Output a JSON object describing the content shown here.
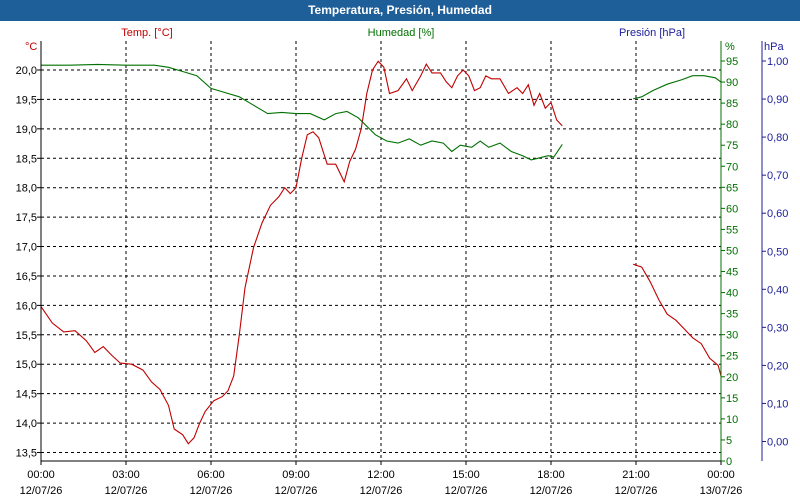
{
  "window": {
    "title": "Temperatura, Presión, Humedad"
  },
  "chart_data": {
    "type": "line",
    "title": "Temperatura, Presión, Humedad",
    "grid": true,
    "x_ticks": [
      [
        "00:00",
        "12/07/26"
      ],
      [
        "03:00",
        "12/07/26"
      ],
      [
        "06:00",
        "12/07/26"
      ],
      [
        "09:00",
        "12/07/26"
      ],
      [
        "12:00",
        "12/07/26"
      ],
      [
        "15:00",
        "12/07/26"
      ],
      [
        "18:00",
        "12/07/26"
      ],
      [
        "21:00",
        "12/07/26"
      ],
      [
        "00:00",
        "13/07/26"
      ]
    ],
    "xlim": [
      0,
      24
    ],
    "axes": {
      "temp": {
        "unit": "°C",
        "label": "Temp. [°C]",
        "color": "#c00000",
        "ylim": [
          13.5,
          20.0
        ],
        "ticks": [
          "13,5",
          "14,0",
          "14,5",
          "15,0",
          "15,5",
          "16,0",
          "16,5",
          "17,0",
          "17,5",
          "18,0",
          "18,5",
          "19,0",
          "19,5",
          "20,0"
        ]
      },
      "hum": {
        "unit": "%",
        "label": "Humedad [%]",
        "color": "#007000",
        "ylim": [
          0,
          95
        ],
        "ticks": [
          "0",
          "5",
          "10",
          "15",
          "20",
          "25",
          "30",
          "35",
          "40",
          "45",
          "50",
          "55",
          "60",
          "65",
          "70",
          "75",
          "80",
          "85",
          "90",
          "95"
        ]
      },
      "pres": {
        "unit": "hPa",
        "label": "Presión [hPa]",
        "color": "#1c1c9c",
        "ylim": [
          0.0,
          1.0
        ],
        "ticks": [
          "0,00",
          "0,10",
          "0,20",
          "0,30",
          "0,40",
          "0,50",
          "0,60",
          "0,70",
          "0,80",
          "0,90",
          "1,00"
        ]
      }
    },
    "series": [
      {
        "name": "Temp. [°C]",
        "axis": "temp",
        "color": "#c00000",
        "segments": [
          [
            [
              0,
              15.98
            ],
            [
              0.4,
              15.7
            ],
            [
              0.8,
              15.55
            ],
            [
              1.2,
              15.57
            ],
            [
              1.6,
              15.4
            ],
            [
              1.9,
              15.2
            ],
            [
              2.2,
              15.3
            ],
            [
              2.5,
              15.15
            ],
            [
              2.8,
              15.02
            ],
            [
              3.2,
              15.0
            ],
            [
              3.6,
              14.9
            ],
            [
              3.9,
              14.7
            ],
            [
              4.2,
              14.57
            ],
            [
              4.5,
              14.3
            ],
            [
              4.7,
              13.9
            ],
            [
              5.0,
              13.8
            ],
            [
              5.2,
              13.65
            ],
            [
              5.4,
              13.75
            ],
            [
              5.6,
              14.0
            ],
            [
              5.8,
              14.2
            ],
            [
              6.1,
              14.38
            ],
            [
              6.4,
              14.45
            ],
            [
              6.6,
              14.55
            ],
            [
              6.8,
              14.8
            ],
            [
              7.0,
              15.5
            ],
            [
              7.2,
              16.3
            ],
            [
              7.5,
              16.98
            ],
            [
              7.8,
              17.4
            ],
            [
              8.1,
              17.7
            ],
            [
              8.4,
              17.85
            ],
            [
              8.6,
              18.0
            ],
            [
              8.8,
              17.9
            ],
            [
              9.0,
              18.0
            ],
            [
              9.2,
              18.5
            ],
            [
              9.4,
              18.9
            ],
            [
              9.6,
              18.95
            ],
            [
              9.8,
              18.85
            ],
            [
              10.1,
              18.4
            ],
            [
              10.4,
              18.4
            ],
            [
              10.7,
              18.1
            ],
            [
              10.9,
              18.45
            ],
            [
              11.1,
              18.65
            ],
            [
              11.3,
              19.0
            ],
            [
              11.5,
              19.6
            ],
            [
              11.7,
              20.0
            ],
            [
              11.9,
              20.15
            ],
            [
              12.1,
              20.05
            ],
            [
              12.3,
              19.6
            ],
            [
              12.6,
              19.65
            ],
            [
              12.9,
              19.85
            ],
            [
              13.1,
              19.65
            ],
            [
              13.4,
              19.9
            ],
            [
              13.6,
              20.1
            ],
            [
              13.8,
              19.95
            ],
            [
              14.1,
              19.95
            ],
            [
              14.3,
              19.8
            ],
            [
              14.5,
              19.7
            ],
            [
              14.7,
              19.9
            ],
            [
              14.9,
              20.0
            ],
            [
              15.1,
              19.9
            ],
            [
              15.3,
              19.65
            ],
            [
              15.5,
              19.7
            ],
            [
              15.7,
              19.9
            ],
            [
              15.9,
              19.85
            ],
            [
              16.2,
              19.85
            ],
            [
              16.5,
              19.6
            ],
            [
              16.8,
              19.7
            ],
            [
              17.0,
              19.6
            ],
            [
              17.2,
              19.75
            ],
            [
              17.4,
              19.4
            ],
            [
              17.6,
              19.6
            ],
            [
              17.8,
              19.35
            ],
            [
              18.0,
              19.45
            ],
            [
              18.2,
              19.15
            ],
            [
              18.4,
              19.05
            ]
          ],
          [
            [
              20.9,
              16.7
            ],
            [
              21.2,
              16.65
            ],
            [
              21.5,
              16.4
            ],
            [
              21.8,
              16.1
            ],
            [
              22.1,
              15.85
            ],
            [
              22.4,
              15.75
            ],
            [
              22.7,
              15.6
            ],
            [
              23.0,
              15.45
            ],
            [
              23.3,
              15.35
            ],
            [
              23.6,
              15.1
            ],
            [
              23.9,
              14.98
            ],
            [
              24.2,
              14.8
            ]
          ]
        ]
      },
      {
        "name": "Humedad [%]",
        "axis": "hum",
        "color": "#007000",
        "segments": [
          [
            [
              0,
              94
            ],
            [
              1,
              94
            ],
            [
              2,
              94.2
            ],
            [
              3,
              94
            ],
            [
              4,
              94
            ],
            [
              4.5,
              93.5
            ],
            [
              5,
              92.5
            ],
            [
              5.5,
              91.5
            ],
            [
              6,
              88.5
            ],
            [
              6.5,
              87.5
            ],
            [
              7,
              86.5
            ],
            [
              7.5,
              84.5
            ],
            [
              8,
              82.5
            ],
            [
              8.5,
              82.8
            ],
            [
              9,
              82.5
            ],
            [
              9.5,
              82.5
            ],
            [
              10,
              81
            ],
            [
              10.4,
              82.5
            ],
            [
              10.8,
              83
            ],
            [
              11.2,
              81.5
            ],
            [
              11.5,
              79.5
            ],
            [
              11.8,
              77.5
            ],
            [
              12.2,
              76
            ],
            [
              12.6,
              75.5
            ],
            [
              13,
              76.5
            ],
            [
              13.4,
              75
            ],
            [
              13.8,
              76
            ],
            [
              14.2,
              75.5
            ],
            [
              14.5,
              73.5
            ],
            [
              14.8,
              75
            ],
            [
              15.2,
              74.5
            ],
            [
              15.5,
              76
            ],
            [
              15.8,
              74.5
            ],
            [
              16.2,
              75.5
            ],
            [
              16.6,
              73.5
            ],
            [
              17,
              72.5
            ],
            [
              17.3,
              71.5
            ],
            [
              17.6,
              72
            ],
            [
              17.9,
              72.5
            ],
            [
              18.1,
              72.2
            ],
            [
              18.4,
              75.2
            ]
          ],
          [
            [
              20.9,
              86
            ],
            [
              21.2,
              86.5
            ],
            [
              21.6,
              88
            ],
            [
              22.1,
              89.5
            ],
            [
              22.6,
              90.5
            ],
            [
              23.0,
              91.5
            ],
            [
              23.4,
              91.5
            ],
            [
              23.8,
              91
            ],
            [
              24.2,
              90
            ]
          ]
        ]
      }
    ]
  }
}
